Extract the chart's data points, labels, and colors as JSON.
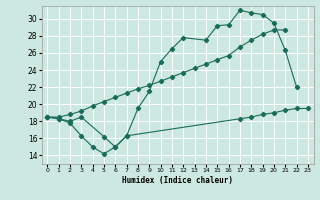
{
  "xlabel": "Humidex (Indice chaleur)",
  "bg_color": "#cce8e0",
  "grid_color": "#ffffff",
  "line_color": "#1a6b5a",
  "xlim": [
    -0.5,
    23.5
  ],
  "ylim": [
    13.0,
    31.5
  ],
  "xticks": [
    0,
    1,
    2,
    3,
    4,
    5,
    6,
    7,
    8,
    9,
    10,
    11,
    12,
    13,
    14,
    15,
    16,
    17,
    18,
    19,
    20,
    21,
    22,
    23
  ],
  "yticks": [
    14,
    16,
    18,
    20,
    22,
    24,
    26,
    28,
    30
  ],
  "line1_x": [
    0,
    1,
    2,
    3,
    5,
    6,
    7,
    8,
    9,
    10,
    11,
    12,
    14,
    15,
    16,
    17,
    18,
    19,
    20,
    21,
    22
  ],
  "line1_y": [
    18.5,
    18.3,
    18.0,
    18.5,
    16.2,
    15.0,
    16.3,
    19.5,
    21.5,
    25.0,
    26.5,
    27.8,
    27.5,
    29.2,
    29.3,
    31.0,
    30.7,
    30.5,
    29.5,
    26.3,
    22.0
  ],
  "line2_x": [
    0,
    1,
    2,
    3,
    4,
    5,
    6,
    7,
    8,
    9,
    10,
    11,
    12,
    13,
    14,
    15,
    16,
    17,
    18,
    19,
    20,
    21
  ],
  "line2_y": [
    18.5,
    18.5,
    18.8,
    19.2,
    19.8,
    20.3,
    20.8,
    21.3,
    21.8,
    22.2,
    22.7,
    23.2,
    23.7,
    24.2,
    24.7,
    25.2,
    25.7,
    26.7,
    27.5,
    28.2,
    28.7,
    28.7
  ],
  "line3_x": [
    0,
    1,
    2,
    3,
    4,
    5,
    6,
    7,
    17,
    18,
    19,
    20,
    21,
    22,
    23
  ],
  "line3_y": [
    18.5,
    18.3,
    17.8,
    16.3,
    15.0,
    14.2,
    15.0,
    16.3,
    18.3,
    18.5,
    18.8,
    19.0,
    19.3,
    19.5,
    19.5
  ]
}
